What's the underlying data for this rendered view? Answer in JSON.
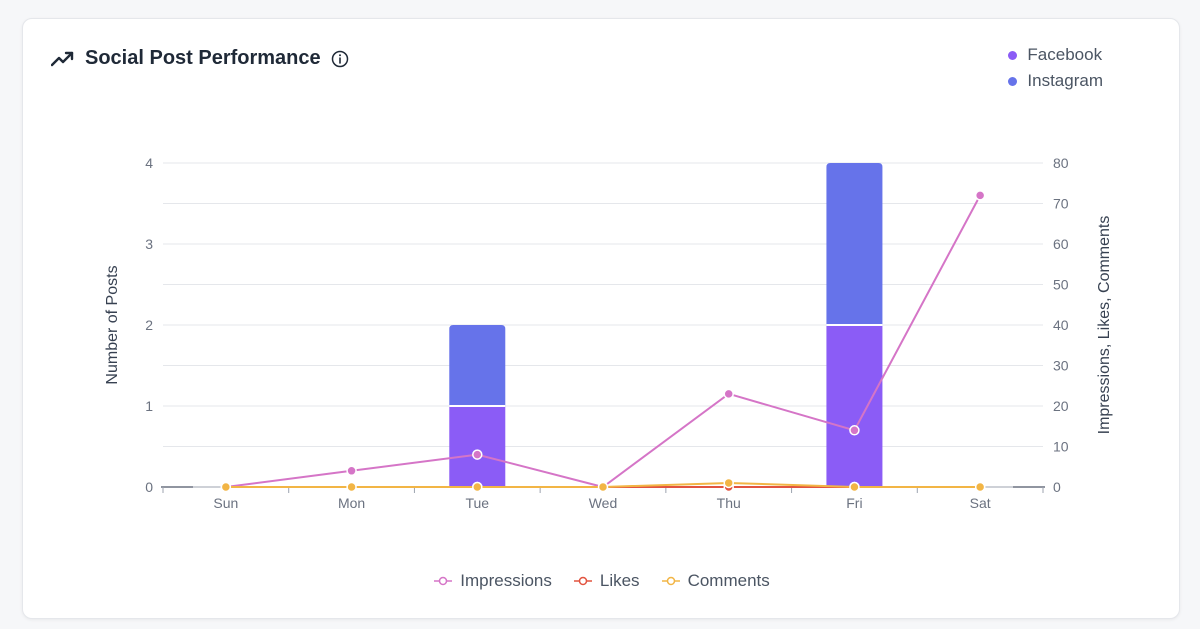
{
  "header": {
    "title": "Social Post Performance",
    "trend_icon": "trending-up-icon",
    "info_icon": "info-icon"
  },
  "colors": {
    "facebook": "#8b5cf6",
    "instagram": "#6673ea",
    "impressions": "#d575c7",
    "likes": "#e2533f",
    "comments": "#f2b545",
    "grid": "#e5e7eb",
    "axis_text": "#6b7280"
  },
  "chart_data": {
    "type": "bar",
    "categories": [
      "Sun",
      "Mon",
      "Tue",
      "Wed",
      "Thu",
      "Fri",
      "Sat"
    ],
    "ylabel_left": "Number of Posts",
    "ylabel_right": "Impressions, Likes, Comments",
    "ylim_left": [
      0,
      4
    ],
    "ylim_right": [
      0,
      80
    ],
    "yticks_left": [
      0,
      1,
      2,
      3,
      4
    ],
    "yticks_right": [
      0,
      10,
      20,
      30,
      40,
      50,
      60,
      70,
      80
    ],
    "grid": true,
    "stacked_bars": [
      {
        "name": "Facebook",
        "axis": "left",
        "values": [
          0,
          0,
          1,
          0,
          0,
          2,
          0
        ]
      },
      {
        "name": "Instagram",
        "axis": "left",
        "values": [
          0,
          0,
          1,
          0,
          0,
          2,
          0
        ]
      }
    ],
    "lines": [
      {
        "name": "Impressions",
        "axis": "right",
        "values": [
          0,
          4,
          8,
          0,
          23,
          14,
          72
        ]
      },
      {
        "name": "Likes",
        "axis": "right",
        "values": [
          0,
          0,
          0,
          0,
          0,
          0,
          0
        ]
      },
      {
        "name": "Comments",
        "axis": "right",
        "values": [
          0,
          0,
          0,
          0,
          1,
          0,
          0
        ]
      }
    ],
    "legend_top": [
      "Facebook",
      "Instagram"
    ],
    "legend_bottom": [
      "Impressions",
      "Likes",
      "Comments"
    ],
    "legend_top_position": "top-right",
    "legend_bottom_position": "bottom-center"
  }
}
